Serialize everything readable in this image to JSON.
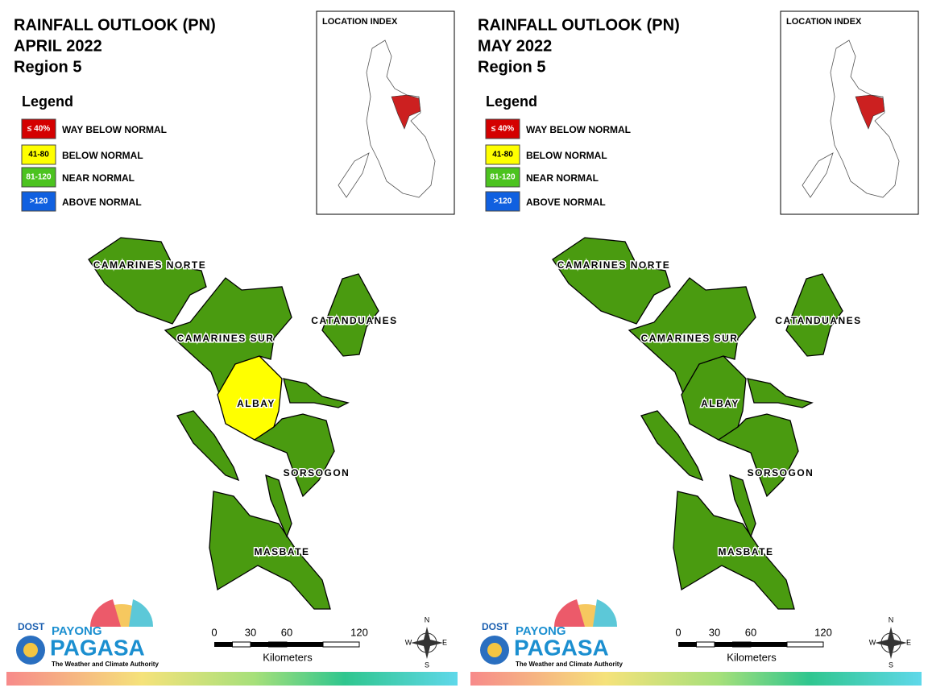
{
  "panels": [
    {
      "title": "RAINFALL OUTLOOK (PN)",
      "month": "APRIL 2022",
      "region": "Region 5",
      "legend_title": "Legend",
      "legend": [
        {
          "swatch": "≤ 40%",
          "label": "WAY BELOW NORMAL",
          "color": "#d40000"
        },
        {
          "swatch": "41-80",
          "label": "BELOW NORMAL",
          "color": "#ffff00"
        },
        {
          "swatch": "81-120",
          "label": "NEAR NORMAL",
          "color": "#4cc31f"
        },
        {
          "swatch": ">120",
          "label": "ABOVE NORMAL",
          "color": "#1060e0"
        }
      ],
      "inset_title": "LOCATION INDEX",
      "provinces": [
        {
          "name": "CAMARINES NORTE",
          "fill": "#4a9b10"
        },
        {
          "name": "CAMARINES SUR",
          "fill": "#4a9b10"
        },
        {
          "name": "CATANDUANES",
          "fill": "#4a9b10"
        },
        {
          "name": "ALBAY",
          "fill": "#ffff00"
        },
        {
          "name": "SORSOGON",
          "fill": "#4a9b10"
        },
        {
          "name": "MASBATE",
          "fill": "#4a9b10"
        }
      ],
      "scale": {
        "ticks": [
          0,
          30,
          60,
          120
        ],
        "unit": "Kilometers"
      },
      "compass": [
        "N",
        "E",
        "S",
        "W"
      ],
      "logo": {
        "agency": "DOST",
        "brand": "PAYONG",
        "name": "PAGASA",
        "tagline": "The Weather and Climate Authority"
      }
    },
    {
      "title": "RAINFALL OUTLOOK (PN)",
      "month": "MAY 2022",
      "region": "Region 5",
      "legend_title": "Legend",
      "legend": [
        {
          "swatch": "≤ 40%",
          "label": "WAY BELOW NORMAL",
          "color": "#d40000"
        },
        {
          "swatch": "41-80",
          "label": "BELOW NORMAL",
          "color": "#ffff00"
        },
        {
          "swatch": "81-120",
          "label": "NEAR NORMAL",
          "color": "#4cc31f"
        },
        {
          "swatch": ">120",
          "label": "ABOVE NORMAL",
          "color": "#1060e0"
        }
      ],
      "inset_title": "LOCATION INDEX",
      "provinces": [
        {
          "name": "CAMARINES NORTE",
          "fill": "#4a9b10"
        },
        {
          "name": "CAMARINES SUR",
          "fill": "#4a9b10"
        },
        {
          "name": "CATANDUANES",
          "fill": "#4a9b10"
        },
        {
          "name": "ALBAY",
          "fill": "#4a9b10"
        },
        {
          "name": "SORSOGON",
          "fill": "#4a9b10"
        },
        {
          "name": "MASBATE",
          "fill": "#4a9b10"
        }
      ],
      "scale": {
        "ticks": [
          0,
          30,
          60,
          120
        ],
        "unit": "Kilometers"
      },
      "compass": [
        "N",
        "E",
        "S",
        "W"
      ],
      "logo": {
        "agency": "DOST",
        "brand": "PAYONG",
        "name": "PAGASA",
        "tagline": "The Weather and Climate Authority"
      }
    }
  ]
}
